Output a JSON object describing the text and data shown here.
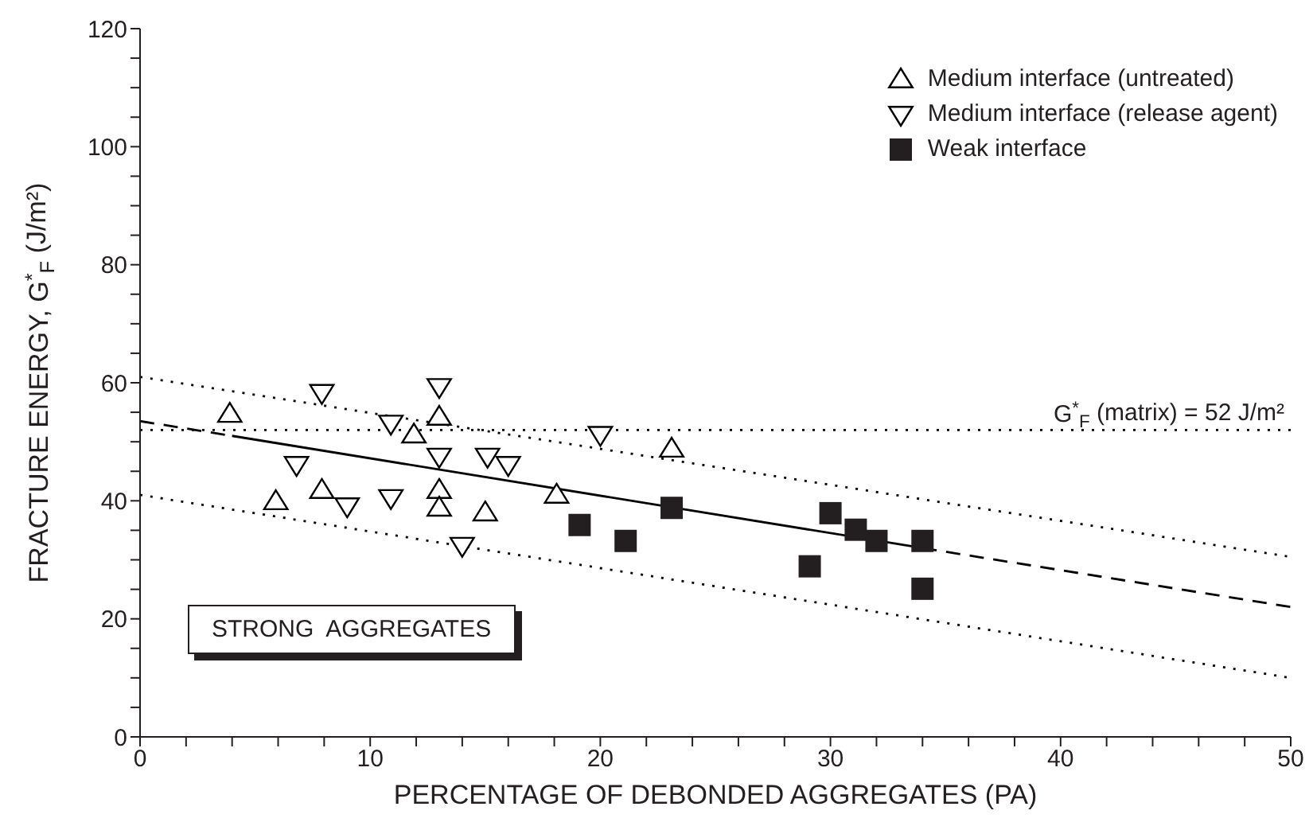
{
  "chart_data": {
    "type": "scatter",
    "xlabel": "PERCENTAGE OF DEBONDED AGGREGATES (PA)",
    "ylabel": "FRACTURE ENERGY, G$^{*}$$_{F}$ (J/m²)",
    "xlim": [
      0,
      50
    ],
    "xticks": [
      0,
      {
        "value": 2,
        "label": null
      },
      {
        "value": 4,
        "label": null
      },
      {
        "value": 6,
        "label": null
      },
      {
        "value": 8,
        "label": null
      },
      10,
      {
        "value": 12,
        "label": null
      },
      {
        "value": 14,
        "label": null
      },
      {
        "value": 16,
        "label": null
      },
      {
        "value": 18,
        "label": null
      },
      20,
      {
        "value": 22,
        "label": null
      },
      {
        "value": 24,
        "label": null
      },
      {
        "value": 26,
        "label": null
      },
      {
        "value": 28,
        "label": null
      },
      30,
      {
        "value": 32,
        "label": null
      },
      {
        "value": 34,
        "label": null
      },
      {
        "value": 36,
        "label": null
      },
      {
        "value": 38,
        "label": null
      },
      40,
      {
        "value": 42,
        "label": null
      },
      {
        "value": 44,
        "label": null
      },
      {
        "value": 46,
        "label": null
      },
      {
        "value": 48,
        "label": null
      },
      50
    ],
    "ylim": [
      0,
      120
    ],
    "yticks": [
      0,
      {
        "value": 5,
        "label": null
      },
      {
        "value": 10,
        "label": null
      },
      {
        "value": 15,
        "label": null
      },
      20,
      {
        "value": 25,
        "label": null
      },
      {
        "value": 30,
        "label": null
      },
      {
        "value": 35,
        "label": null
      },
      40,
      {
        "value": 45,
        "label": null
      },
      {
        "value": 50,
        "label": null
      },
      {
        "value": 55,
        "label": null
      },
      60,
      {
        "value": 65,
        "label": null
      },
      {
        "value": 70,
        "label": null
      },
      {
        "value": 75,
        "label": null
      },
      80,
      {
        "value": 85,
        "label": null
      },
      {
        "value": 90,
        "label": null
      },
      {
        "value": 95,
        "label": null
      },
      100,
      {
        "value": 105,
        "label": null
      },
      {
        "value": 110,
        "label": null
      },
      {
        "value": 115,
        "label": null
      },
      120
    ],
    "legend": "top right",
    "grid": false,
    "series": [
      {
        "name": "Medium interface (untreated)",
        "marker": "triangle",
        "color": "#000000",
        "x": [
          3.9,
          5.9,
          7.9,
          11.9,
          13,
          13,
          13,
          15,
          18.1,
          23.1
        ],
        "values": [
          54.7,
          39.9,
          41.8,
          51.2,
          54.2,
          41.8,
          38.8,
          38,
          41,
          48.8
        ]
      },
      {
        "name": "Medium interface (release agent)",
        "marker": "triangle_down",
        "color": "#000000",
        "x": [
          6.8,
          7.9,
          9,
          10.9,
          10.9,
          13,
          13,
          14,
          15.1,
          16,
          20
        ],
        "values": [
          46.1,
          58.3,
          39.1,
          53.1,
          40.5,
          59.3,
          47.5,
          32.4,
          47.5,
          46.1,
          51.2
        ]
      },
      {
        "name": "Weak interface",
        "marker": "square",
        "color": "#231f20",
        "x": [
          19.1,
          21.1,
          23.1,
          29.1,
          30,
          31.1,
          32,
          34,
          34
        ],
        "values": [
          35.9,
          33.2,
          38.8,
          28.9,
          37.9,
          35.1,
          33.2,
          33.2,
          25.1
        ]
      },
      {
        "type": "line",
        "marker": "none",
        "line_style": "dashed",
        "color": "#000000",
        "x": [
          0,
          4
        ],
        "values": [
          53.5,
          51
        ]
      },
      {
        "type": "line",
        "marker": "none",
        "line_style": "solid",
        "color": "#000000",
        "x": [
          4,
          34
        ],
        "values": [
          51,
          32
        ]
      },
      {
        "type": "line",
        "marker": "none",
        "line_style": "dashed",
        "color": "#000000",
        "x": [
          34,
          50
        ],
        "values": [
          32,
          22
        ]
      },
      {
        "type": "line",
        "marker": "none",
        "line_style": "dotted",
        "color": "#000000",
        "x": [
          0,
          50
        ],
        "values": [
          61,
          30.5
        ]
      },
      {
        "type": "line",
        "marker": "none",
        "line_style": "dotted",
        "color": "#000000",
        "x": [
          0,
          50
        ],
        "values": [
          41,
          10
        ]
      }
    ],
    "ref_lines": [
      {
        "axis": "y",
        "value": 52,
        "label": "G$^{*}$$_{F}$ (matrix) = 52 J/m²",
        "line_style": "dotted",
        "color": "#000000"
      }
    ],
    "annotations": [
      "STRONG  AGGREGATES"
    ]
  }
}
